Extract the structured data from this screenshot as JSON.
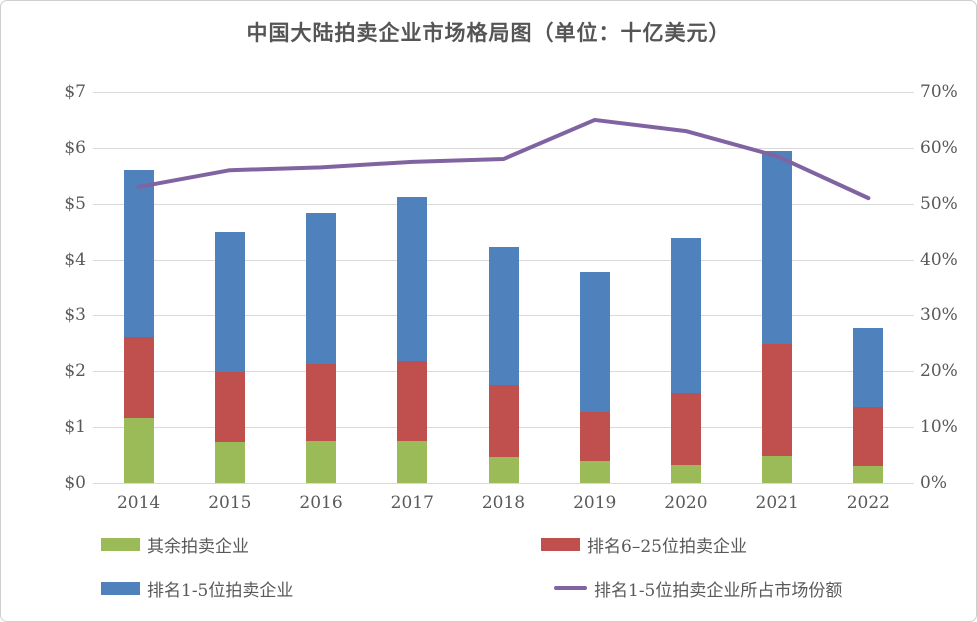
{
  "title": "中国大陆拍卖企业市场格局图（单位：十亿美元）",
  "chart_data": {
    "type": "bar",
    "subtype": "stacked-bars-with-line-overlay",
    "title": "中国大陆拍卖企业市场格局图（单位：十亿美元）",
    "categories": [
      "2014",
      "2015",
      "2016",
      "2017",
      "2018",
      "2019",
      "2020",
      "2021",
      "2022"
    ],
    "series": [
      {
        "name": "其余拍卖企业",
        "color": "#9bbb59",
        "axis": "left",
        "values": [
          1.17,
          0.73,
          0.76,
          0.76,
          0.46,
          0.39,
          0.32,
          0.48,
          0.3
        ]
      },
      {
        "name": "排名6–25位拍卖企业",
        "color": "#c0504d",
        "axis": "left",
        "values": [
          1.45,
          1.26,
          1.37,
          1.42,
          1.3,
          0.89,
          1.29,
          2.0,
          1.06
        ]
      },
      {
        "name": "排名1-5位拍卖企业",
        "color": "#4f81bd",
        "axis": "left",
        "values": [
          2.98,
          2.51,
          2.7,
          2.94,
          2.46,
          2.5,
          2.77,
          3.47,
          1.42
        ]
      }
    ],
    "bar_totals": [
      5.6,
      4.5,
      4.83,
      5.12,
      4.22,
      3.78,
      4.38,
      5.95,
      2.78
    ],
    "line_series": {
      "name": "排名1-5位拍卖企业所占市场份额",
      "color": "#8064a2",
      "axis": "right",
      "values_percent": [
        53,
        56,
        56.5,
        57.5,
        58,
        65,
        63,
        58.5,
        51
      ]
    },
    "left_axis": {
      "ticks": [
        "$0",
        "$1",
        "$2",
        "$3",
        "$4",
        "$5",
        "$6",
        "$7"
      ],
      "min": 0,
      "max": 7
    },
    "right_axis": {
      "ticks": [
        "0%",
        "10%",
        "20%",
        "30%",
        "40%",
        "50%",
        "60%",
        "70%"
      ],
      "min": 0,
      "max": 70
    },
    "grid": true,
    "gridline_color": "#d9d9d9",
    "legend_position": "bottom"
  }
}
